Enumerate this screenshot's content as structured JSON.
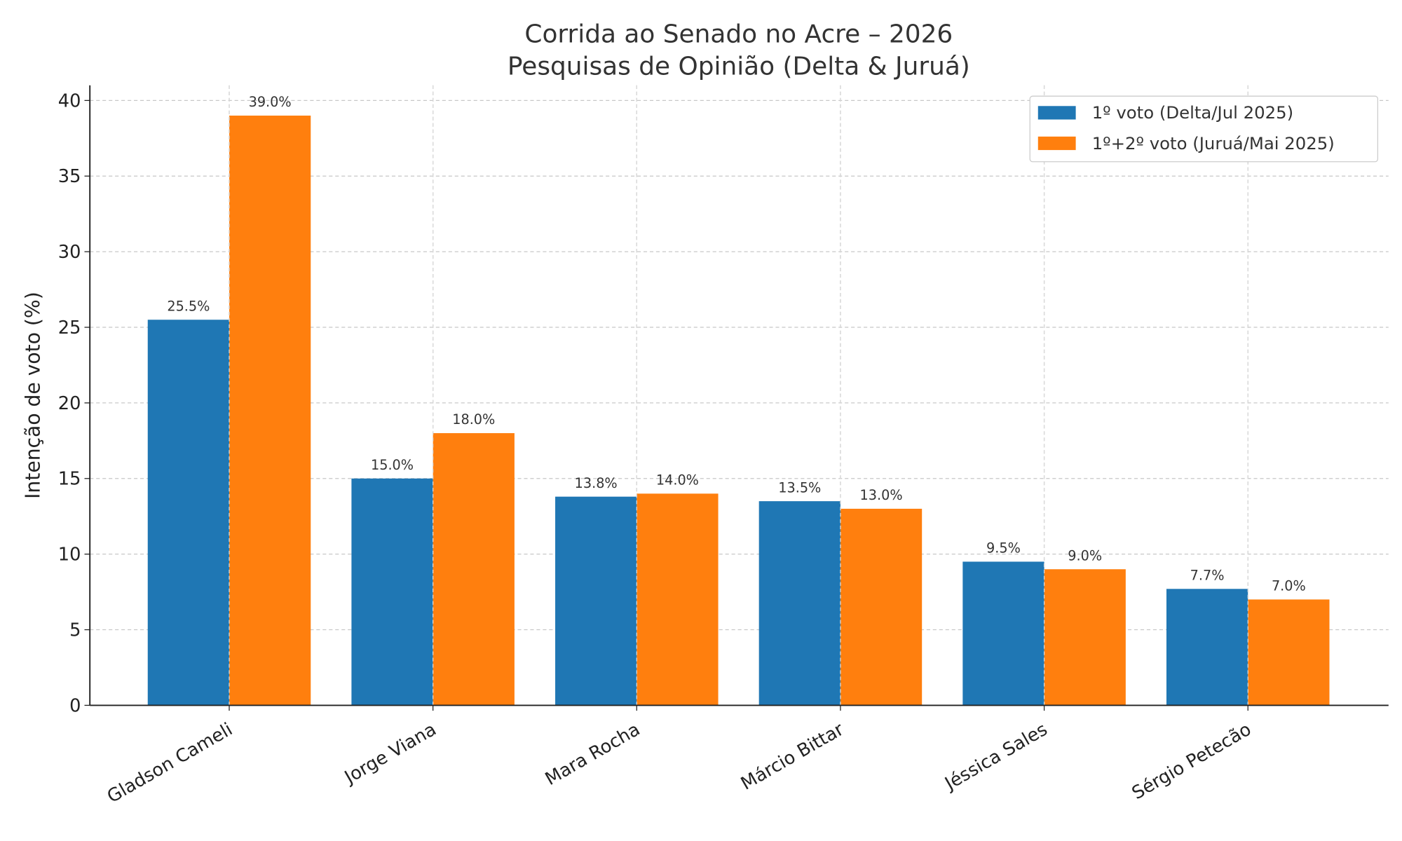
{
  "chart_data": {
    "type": "bar",
    "title": "Corrida ao Senado no Acre – 2026",
    "subtitle": "Pesquisas de Opinião (Delta & Juruá)",
    "xlabel": "",
    "ylabel": "Intenção de voto (%)",
    "ylim": [
      0,
      41
    ],
    "yticks": [
      0,
      5,
      10,
      15,
      20,
      25,
      30,
      35,
      40
    ],
    "grid": true,
    "legend_position": "top-right",
    "categories": [
      "Gladson Cameli",
      "Jorge Viana",
      "Mara Rocha",
      "Márcio Bittar",
      "Jéssica Sales",
      "Sérgio Petecão"
    ],
    "series": [
      {
        "name": "1º voto (Delta/Jul 2025)",
        "color": "#1f77b4",
        "values": [
          25.5,
          15.0,
          13.8,
          13.5,
          9.5,
          7.7
        ],
        "labels": [
          "25.5%",
          "15.0%",
          "13.8%",
          "13.5%",
          "9.5%",
          "7.7%"
        ]
      },
      {
        "name": "1º+2º voto (Juruá/Mai 2025)",
        "color": "#ff7f0e",
        "values": [
          39.0,
          18.0,
          14.0,
          13.0,
          9.0,
          7.0
        ],
        "labels": [
          "39.0%",
          "18.0%",
          "14.0%",
          "13.0%",
          "9.0%",
          "7.0%"
        ]
      }
    ]
  }
}
